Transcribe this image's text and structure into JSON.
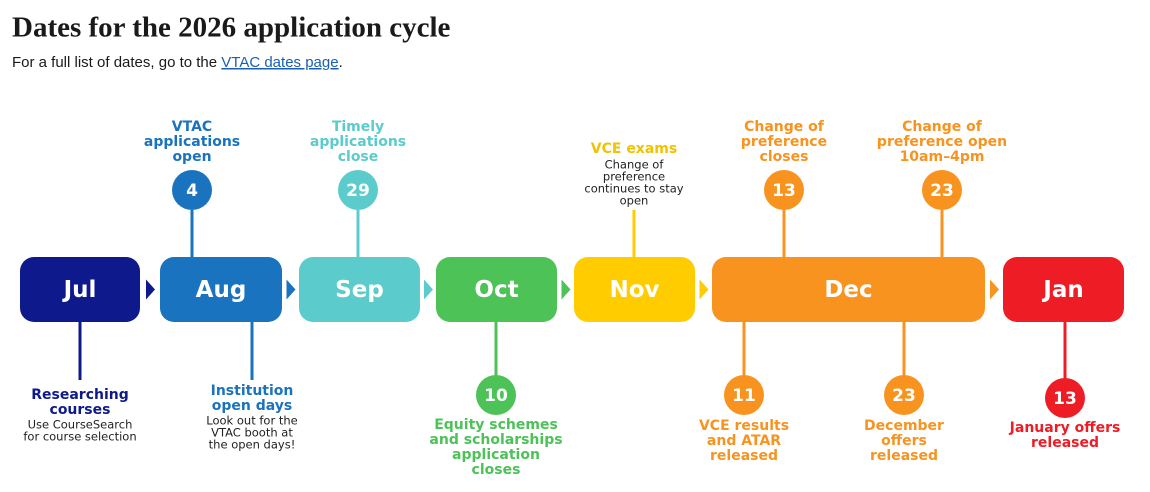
{
  "header": {
    "title": "Dates for the 2026 application cycle",
    "intro": {
      "before": "For a full list of dates, go to the ",
      "link": "VTAC dates page",
      "after": "."
    }
  },
  "months": [
    "Jul",
    "Aug",
    "Sep",
    "Oct",
    "Nov",
    "Dec",
    "Jan"
  ],
  "events": [
    {
      "day": "4",
      "title": [
        "VTAC",
        "applications",
        "open"
      ]
    },
    {
      "day": "29",
      "title": [
        "Timely",
        "applications",
        "close"
      ]
    },
    {
      "title": [
        "VCE exams"
      ],
      "note": [
        "Change of",
        "preference",
        "continues to stay",
        "open"
      ]
    },
    {
      "day": "13",
      "title": [
        "Change of",
        "preference",
        "closes"
      ]
    },
    {
      "day": "23",
      "title": [
        "Change of",
        "preference open",
        "10am–4pm"
      ]
    },
    {
      "title": [
        "Researching",
        "courses"
      ],
      "note": [
        "Use CourseSearch",
        "for course selection"
      ]
    },
    {
      "title": [
        "Institution",
        "open days"
      ],
      "note": [
        "Look out for the",
        "VTAC booth at",
        "the open days!"
      ]
    },
    {
      "day": "10",
      "title": [
        "Equity schemes",
        "and scholarships",
        "application",
        "closes"
      ]
    },
    {
      "day": "11",
      "title": [
        "VCE results",
        "and ATAR",
        "released"
      ]
    },
    {
      "day": "23",
      "title": [
        "December",
        "offers",
        "released"
      ]
    },
    {
      "day": "13",
      "title": [
        "January offers",
        "released"
      ]
    }
  ]
}
